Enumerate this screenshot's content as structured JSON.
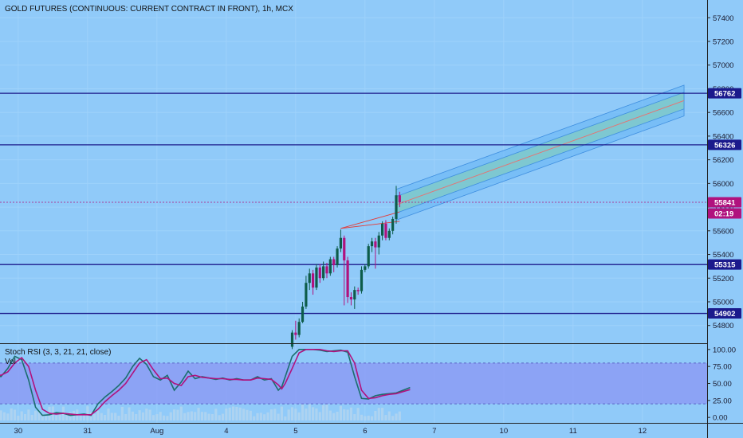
{
  "header": {
    "title": "GOLD FUTURES (CONTINUOUS: CURRENT CONTRACT IN FRONT), 1h, MCX"
  },
  "colors": {
    "background": "#90caf9",
    "bull": "#0d5c4a",
    "bear": "#b0127e",
    "level_line": "#1b1a8c",
    "last_price": "#b0127e",
    "channel_outer": "#64b5f6",
    "channel_inner": "#80cbc4",
    "channel_mid": "#e57373",
    "stoch_k": "#1b6e6e",
    "stoch_d": "#b0127e",
    "stoch_band": "#8c9cf5",
    "volume": "#b0d4f0"
  },
  "chart_data": [
    {
      "type": "candlestick",
      "symbol": "GOLD FUTURES (CONTINUOUS: CURRENT CONTRACT IN FRONT)",
      "interval": "1h",
      "exchange": "MCX",
      "ylim": [
        54650,
        57550
      ],
      "y_ticks": [
        54800,
        55000,
        55200,
        55400,
        55600,
        55800,
        56000,
        56200,
        56400,
        56600,
        56800,
        57000,
        57200,
        57400
      ],
      "x_ticks": [
        {
          "label": "30",
          "slot": -89
        },
        {
          "label": "31",
          "slot": -69
        },
        {
          "label": "Aug",
          "slot": -49
        },
        {
          "label": "4",
          "slot": -29
        },
        {
          "label": "5",
          "slot": -9
        },
        {
          "label": "6",
          "slot": 11
        },
        {
          "label": "7",
          "slot": 31
        },
        {
          "label": "10",
          "slot": 51
        },
        {
          "label": "11",
          "slot": 71
        },
        {
          "label": "12",
          "slot": 91
        }
      ],
      "candles": [
        [
          -10,
          54620,
          54740,
          54600,
          54760
        ],
        [
          -9,
          54740,
          54720,
          54680,
          54840
        ],
        [
          -8,
          54720,
          54830,
          54700,
          54860
        ],
        [
          -7,
          54830,
          54960,
          54820,
          55000
        ],
        [
          -6,
          54960,
          55160,
          54940,
          55220
        ],
        [
          -5,
          55160,
          55240,
          55100,
          55280
        ],
        [
          -4,
          55240,
          55120,
          55060,
          55270
        ],
        [
          -3,
          55120,
          55290,
          55100,
          55320
        ],
        [
          -2,
          55290,
          55200,
          55160,
          55320
        ],
        [
          -1,
          55200,
          55300,
          55180,
          55340
        ],
        [
          0,
          55300,
          55240,
          55200,
          55330
        ],
        [
          1,
          55240,
          55360,
          55220,
          55380
        ],
        [
          2,
          55360,
          55310,
          55250,
          55380
        ],
        [
          3,
          55310,
          55450,
          55290,
          55470
        ],
        [
          4,
          55450,
          55540,
          55420,
          55610
        ],
        [
          5,
          55540,
          55350,
          54970,
          55560
        ],
        [
          6,
          55350,
          55040,
          54990,
          55380
        ],
        [
          7,
          55040,
          55020,
          54970,
          55080
        ],
        [
          8,
          55020,
          55100,
          54940,
          55130
        ],
        [
          9,
          55100,
          55090,
          55060,
          55120
        ],
        [
          10,
          55090,
          55270,
          55070,
          55300
        ],
        [
          11,
          55270,
          55300,
          55250,
          55320
        ],
        [
          12,
          55300,
          55470,
          55280,
          55490
        ],
        [
          13,
          55470,
          55510,
          55420,
          55540
        ],
        [
          14,
          55510,
          55460,
          55280,
          55540
        ],
        [
          15,
          55460,
          55560,
          55400,
          55590
        ],
        [
          16,
          55560,
          55660,
          55520,
          55680
        ],
        [
          17,
          55660,
          55540,
          55520,
          55690
        ],
        [
          18,
          55540,
          55600,
          55520,
          55620
        ],
        [
          19,
          55600,
          55700,
          55570,
          55720
        ],
        [
          20,
          55700,
          55900,
          55660,
          55980
        ],
        [
          21,
          55900,
          55841,
          55800,
          55930
        ]
      ],
      "horizontal_levels": [
        56762,
        56326,
        55315,
        54902
      ],
      "last_price": 55841,
      "countdown": "02:19",
      "regression_channel": {
        "start": {
          "slot": 20,
          "price": 55820
        },
        "end": {
          "slot": 103,
          "price": 56700
        },
        "outer_width": 260,
        "inner_width": 140
      },
      "trend_lines": [
        {
          "from": {
            "slot": 4,
            "price": 55620
          },
          "to": {
            "slot": 21,
            "price": 55760
          }
        },
        {
          "from": {
            "slot": 4,
            "price": 55620
          },
          "to": {
            "slot": 21,
            "price": 55680
          }
        }
      ]
    },
    {
      "type": "line",
      "title": "Stoch RSI (3, 3, 21, 21, close)",
      "secondary_label": "Vol",
      "ylim": [
        -8,
        108
      ],
      "y_ticks": [
        {
          "label": "100.00",
          "value": 100
        },
        {
          "label": "75.00",
          "value": 75
        },
        {
          "label": "50.00",
          "value": 50
        },
        {
          "label": "25.00",
          "value": 25
        },
        {
          "label": "0.00",
          "value": 0
        }
      ],
      "band": [
        20,
        80
      ],
      "series": [
        {
          "name": "K",
          "points": [
            [
              -102,
              62
            ],
            [
              -100,
              61
            ],
            [
              -98,
              65
            ],
            [
              -96,
              63
            ],
            [
              -94,
              60
            ],
            [
              -92,
              72
            ],
            [
              -90,
              90
            ],
            [
              -88,
              85
            ],
            [
              -86,
              55
            ],
            [
              -84,
              15
            ],
            [
              -82,
              3
            ],
            [
              -80,
              4
            ],
            [
              -78,
              7
            ],
            [
              -76,
              6
            ],
            [
              -74,
              3
            ],
            [
              -72,
              4
            ],
            [
              -70,
              5
            ],
            [
              -68,
              3
            ],
            [
              -66,
              20
            ],
            [
              -64,
              30
            ],
            [
              -62,
              38
            ],
            [
              -60,
              47
            ],
            [
              -58,
              58
            ],
            [
              -56,
              75
            ],
            [
              -54,
              87
            ],
            [
              -52,
              78
            ],
            [
              -50,
              60
            ],
            [
              -48,
              55
            ],
            [
              -46,
              62
            ],
            [
              -44,
              40
            ],
            [
              -42,
              52
            ],
            [
              -40,
              68
            ],
            [
              -38,
              57
            ],
            [
              -36,
              60
            ],
            [
              -34,
              58
            ],
            [
              -32,
              56
            ],
            [
              -30,
              58
            ],
            [
              -28,
              55
            ],
            [
              -26,
              57
            ],
            [
              -24,
              55
            ],
            [
              -22,
              55
            ],
            [
              -20,
              60
            ],
            [
              -18,
              55
            ],
            [
              -16,
              57
            ],
            [
              -14,
              40
            ],
            [
              -13,
              45
            ],
            [
              -12,
              60
            ],
            [
              -10,
              90
            ],
            [
              -8,
              100
            ],
            [
              -6,
              100
            ],
            [
              -4,
              100
            ],
            [
              -2,
              99
            ],
            [
              0,
              97
            ],
            [
              2,
              98
            ],
            [
              4,
              99
            ],
            [
              6,
              96
            ],
            [
              8,
              60
            ],
            [
              10,
              28
            ],
            [
              12,
              27
            ],
            [
              14,
              32
            ],
            [
              16,
              34
            ],
            [
              18,
              35
            ],
            [
              20,
              36
            ],
            [
              22,
              40
            ],
            [
              24,
              44
            ]
          ]
        },
        {
          "name": "D",
          "points": [
            [
              -102,
              60
            ],
            [
              -100,
              62
            ],
            [
              -98,
              63
            ],
            [
              -96,
              64
            ],
            [
              -94,
              62
            ],
            [
              -92,
              67
            ],
            [
              -90,
              80
            ],
            [
              -88,
              88
            ],
            [
              -86,
              75
            ],
            [
              -84,
              40
            ],
            [
              -82,
              12
            ],
            [
              -80,
              6
            ],
            [
              -78,
              5
            ],
            [
              -76,
              6
            ],
            [
              -74,
              5
            ],
            [
              -72,
              4
            ],
            [
              -70,
              4
            ],
            [
              -68,
              4
            ],
            [
              -66,
              12
            ],
            [
              -64,
              23
            ],
            [
              -62,
              32
            ],
            [
              -60,
              40
            ],
            [
              -58,
              50
            ],
            [
              -56,
              65
            ],
            [
              -54,
              80
            ],
            [
              -52,
              85
            ],
            [
              -50,
              70
            ],
            [
              -48,
              57
            ],
            [
              -46,
              58
            ],
            [
              -44,
              50
            ],
            [
              -42,
              47
            ],
            [
              -40,
              60
            ],
            [
              -38,
              62
            ],
            [
              -36,
              59
            ],
            [
              -34,
              58
            ],
            [
              -32,
              57
            ],
            [
              -30,
              57
            ],
            [
              -28,
              56
            ],
            [
              -26,
              56
            ],
            [
              -24,
              55
            ],
            [
              -22,
              55
            ],
            [
              -20,
              58
            ],
            [
              -18,
              57
            ],
            [
              -16,
              56
            ],
            [
              -14,
              48
            ],
            [
              -13,
              42
            ],
            [
              -12,
              50
            ],
            [
              -10,
              72
            ],
            [
              -8,
              95
            ],
            [
              -6,
              100
            ],
            [
              -4,
              100
            ],
            [
              -2,
              100
            ],
            [
              0,
              98
            ],
            [
              2,
              97
            ],
            [
              4,
              98
            ],
            [
              6,
              98
            ],
            [
              8,
              80
            ],
            [
              10,
              40
            ],
            [
              12,
              28
            ],
            [
              14,
              29
            ],
            [
              16,
              32
            ],
            [
              18,
              34
            ],
            [
              20,
              35
            ],
            [
              22,
              38
            ],
            [
              24,
              41
            ]
          ]
        }
      ]
    }
  ]
}
